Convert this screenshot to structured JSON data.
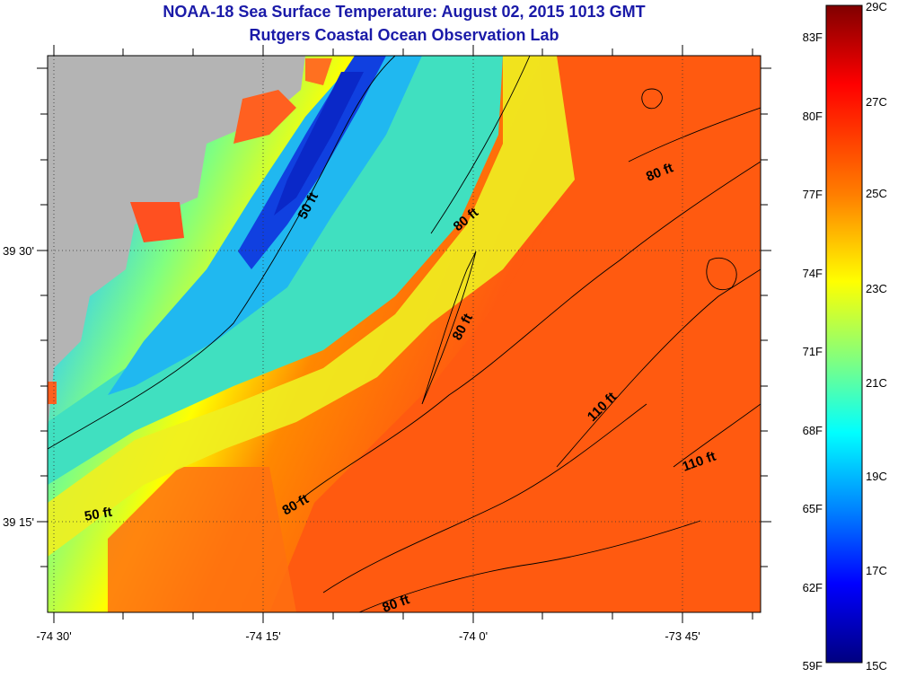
{
  "header": {
    "title": "NOAA-18 Sea Surface Temperature:  August 02, 2015 1013 GMT",
    "subtitle": "Rutgers Coastal Ocean Observation Lab"
  },
  "map": {
    "lon_ticks": [
      {
        "label": "-74 30'"
      },
      {
        "label": "-74 15'"
      },
      {
        "label": "-74 0'"
      },
      {
        "label": "-73 45'"
      }
    ],
    "lat_ticks": [
      {
        "label": "39 30'"
      },
      {
        "label": "39 15'"
      }
    ],
    "depth_labels": [
      {
        "text": "50 ft"
      },
      {
        "text": "80 ft"
      },
      {
        "text": "80 ft"
      },
      {
        "text": "80 ft"
      },
      {
        "text": "110 ft"
      },
      {
        "text": "110 ft"
      },
      {
        "text": "80 ft"
      },
      {
        "text": "50 ft"
      },
      {
        "text": "80 ft"
      }
    ],
    "land_color": "#b4b4b4"
  },
  "colorbar": {
    "fahrenheit_labels": [
      "83F",
      "80F",
      "77F",
      "74F",
      "71F",
      "68F",
      "65F",
      "62F",
      "59F"
    ],
    "celsius_labels": [
      "29C",
      "27C",
      "25C",
      "23C",
      "21C",
      "19C",
      "17C",
      "15C"
    ],
    "colors": [
      "#800000",
      "#ff0000",
      "#ff8000",
      "#ffff00",
      "#80ff80",
      "#00ffff",
      "#0080ff",
      "#0000ff",
      "#000080"
    ]
  }
}
